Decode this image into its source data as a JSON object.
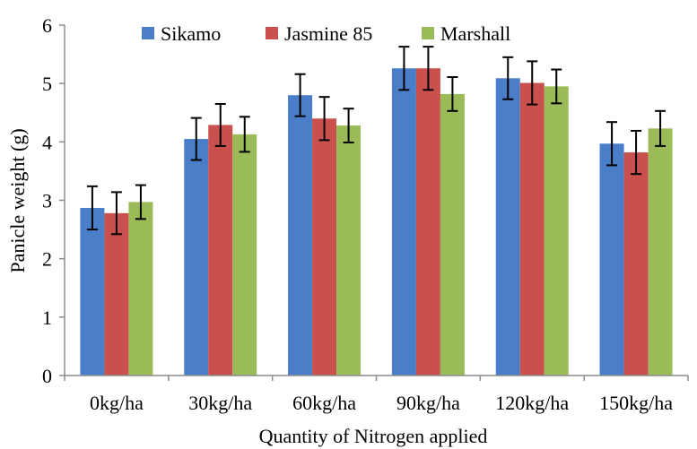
{
  "chart_data": {
    "type": "bar",
    "xlabel": "Quantity of Nitrogen applied",
    "ylabel": "Panicle weight (g)",
    "ylim": [
      0,
      6
    ],
    "yticks": [
      0,
      1,
      2,
      3,
      4,
      5,
      6
    ],
    "grid": false,
    "legend_position": "top",
    "categories": [
      "0kg/ha",
      "30kg/ha",
      "60kg/ha",
      "90kg/ha",
      "120kg/ha",
      "150kg/ha"
    ],
    "series": [
      {
        "name": "Sikamo",
        "color": "#4a7ec9",
        "values": [
          2.87,
          4.05,
          4.8,
          5.26,
          5.09,
          3.97
        ],
        "errors": [
          0.37,
          0.36,
          0.36,
          0.37,
          0.36,
          0.37
        ]
      },
      {
        "name": "Jasmine 85",
        "color": "#c9504c",
        "values": [
          2.78,
          4.29,
          4.4,
          5.26,
          5.01,
          3.82
        ],
        "errors": [
          0.36,
          0.36,
          0.37,
          0.37,
          0.37,
          0.37
        ]
      },
      {
        "name": "Marshall",
        "color": "#9bbb59",
        "values": [
          2.97,
          4.13,
          4.28,
          4.82,
          4.95,
          4.23
        ],
        "errors": [
          0.29,
          0.3,
          0.29,
          0.29,
          0.29,
          0.3
        ]
      }
    ]
  }
}
